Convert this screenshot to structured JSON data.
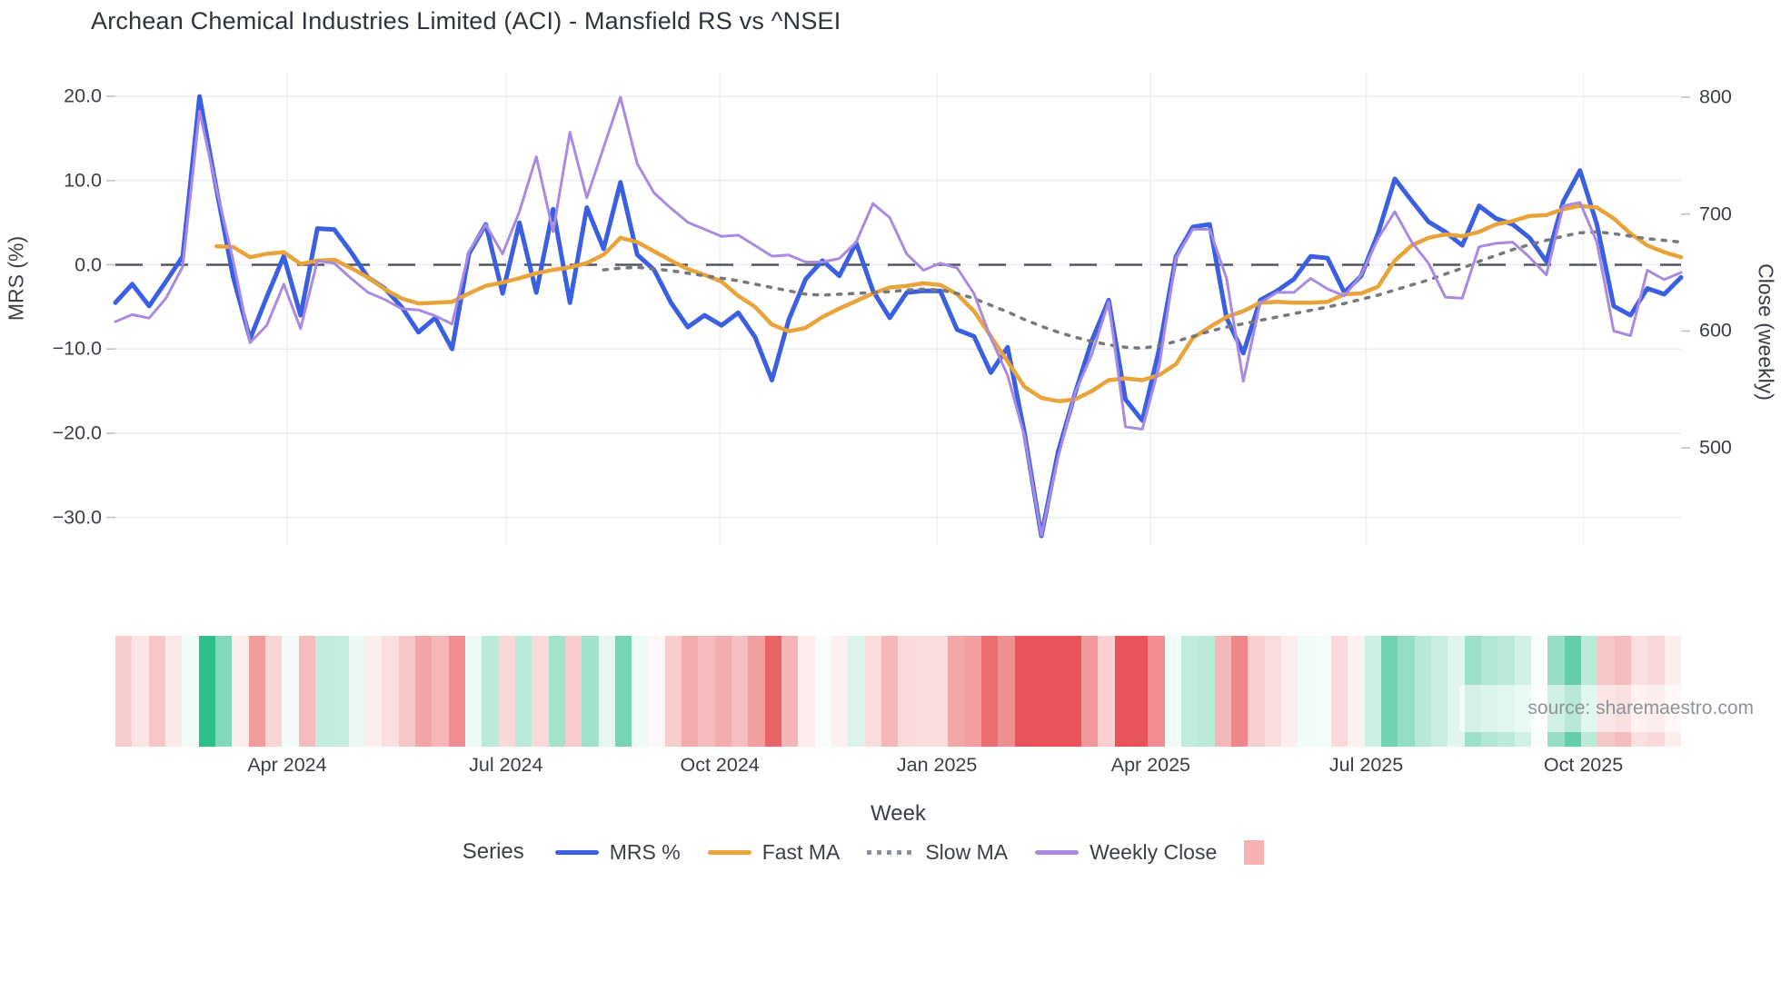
{
  "title": "Archean Chemical Industries Limited (ACI) - Mansfield RS vs ^NSEI",
  "source_note": "source: sharemaestro.com",
  "axes": {
    "y_left_label": "MRS (%)",
    "y_right_label": "Close (weekly)",
    "x_label": "Week",
    "y_left_ticks": [
      "20.0",
      "10.0",
      "0.0",
      "−10.0",
      "−20.0",
      "−30.0"
    ],
    "y_left_tick_values": [
      20,
      10,
      0,
      -10,
      -20,
      -30
    ],
    "y_right_ticks": [
      "800",
      "700",
      "600",
      "500"
    ],
    "y_right_tick_values": [
      800,
      700,
      600,
      500
    ],
    "x_ticks": [
      {
        "label": "Apr 2024",
        "week": 10.2
      },
      {
        "label": "Jul 2024",
        "week": 23.2
      },
      {
        "label": "Oct 2024",
        "week": 35.9
      },
      {
        "label": "Jan 2025",
        "week": 48.8
      },
      {
        "label": "Apr 2025",
        "week": 61.5
      },
      {
        "label": "Jul 2025",
        "week": 74.3
      },
      {
        "label": "Oct 2025",
        "week": 87.2
      }
    ]
  },
  "legend": {
    "title": "Series",
    "items": [
      {
        "label": "MRS %",
        "color": "#3a5fe0",
        "style": "solid"
      },
      {
        "label": "Fast MA",
        "color": "#e8a43a",
        "style": "solid"
      },
      {
        "label": "Slow MA",
        "color": "#8a8f99",
        "style": "dotted"
      },
      {
        "label": "Weekly Close",
        "color": "#a98ae0",
        "style": "solid"
      },
      {
        "label": "",
        "color": "#f7b1b4",
        "style": "square"
      }
    ]
  },
  "chart_data": {
    "type": "line",
    "title": "Archean Chemical Industries Limited (ACI) - Mansfield RS vs ^NSEI",
    "xlabel": "Week",
    "ylabel_left": "MRS (%)",
    "ylabel_right": "Close (weekly)",
    "x_unit": "week_index",
    "n_weeks": 94,
    "ylim_left": [
      -35,
      22
    ],
    "ylim_right": [
      420,
      810
    ],
    "grid": true,
    "legend_position": "bottom",
    "zero_line": {
      "value": 0,
      "axis": "left",
      "style": "dashed",
      "color": "#50555f"
    },
    "series": [
      {
        "name": "MRS %",
        "axis": "left",
        "color": "#3a5fe0",
        "style": "solid",
        "width": 5,
        "values": [
          -4.5,
          -2.3,
          -4.9,
          -2,
          1,
          20,
          9,
          -1.5,
          -8.8,
          -3.8,
          1,
          -6,
          4.3,
          4.2,
          1.5,
          -1.5,
          -2.8,
          -5,
          -8,
          -6.3,
          -10,
          1.3,
          4.8,
          -3.4,
          5,
          -3.3,
          6.6,
          -4.5,
          6.8,
          1.9,
          9.8,
          1.2,
          -0.6,
          -4.5,
          -7.4,
          -6,
          -7.2,
          -5.7,
          -8.6,
          -13.7,
          -6.5,
          -1.7,
          0.5,
          -1.3,
          2.6,
          -3.1,
          -6.3,
          -3.3,
          -3.1,
          -3.1,
          -7.7,
          -8.5,
          -12.8,
          -9.8,
          -20,
          -32.2,
          -22.2,
          -15.3,
          -9,
          -4.2,
          -16,
          -18.5,
          -10,
          1,
          4.5,
          4.8,
          -6.3,
          -10.5,
          -4.2,
          -3.1,
          -1.7,
          1,
          0.8,
          -3.3,
          -1.3,
          3.7,
          10.2,
          7.6,
          5.1,
          3.9,
          2.3,
          7,
          5.5,
          4.8,
          3.2,
          0.4,
          7.5,
          11.2,
          4.8,
          -4.9,
          -6,
          -2.8,
          -3.5,
          -1.5
        ]
      },
      {
        "name": "Fast MA",
        "axis": "left",
        "color": "#e8a43a",
        "style": "solid",
        "width": 4.5,
        "values": [
          null,
          null,
          null,
          null,
          null,
          null,
          2.2,
          2.1,
          0.9,
          1.3,
          1.5,
          0.1,
          0.5,
          0.6,
          -0.4,
          -1.5,
          -2.9,
          -4,
          -4.6,
          -4.5,
          -4.4,
          -3.4,
          -2.5,
          -2.1,
          -1.6,
          -1,
          -0.6,
          -0.3,
          0.2,
          1.2,
          3.2,
          2.7,
          1.6,
          0.5,
          -0.5,
          -1.2,
          -2,
          -3.7,
          -5,
          -7.1,
          -7.9,
          -7.5,
          -6.2,
          -5.2,
          -4.3,
          -3.4,
          -2.7,
          -2.5,
          -2.2,
          -2.4,
          -3.5,
          -5.5,
          -8.5,
          -11.5,
          -14.5,
          -15.8,
          -16.2,
          -16,
          -15,
          -13.7,
          -13.5,
          -13.7,
          -13.1,
          -11.8,
          -8.7,
          -7.4,
          -6.2,
          -5.5,
          -4.5,
          -4.4,
          -4.5,
          -4.5,
          -4.4,
          -3.5,
          -3.4,
          -2.6,
          0.5,
          2.3,
          3.2,
          3.6,
          3.4,
          3.9,
          4.8,
          5.2,
          5.8,
          5.9,
          6.6,
          7,
          6.8,
          5.5,
          3.7,
          2.3,
          1.5,
          0.9
        ]
      },
      {
        "name": "Slow MA",
        "axis": "left",
        "color": "#74797f",
        "style": "dotted",
        "width": 3.5,
        "values": [
          null,
          null,
          null,
          null,
          null,
          null,
          null,
          null,
          null,
          null,
          null,
          null,
          null,
          null,
          null,
          null,
          null,
          null,
          null,
          null,
          null,
          null,
          null,
          null,
          null,
          null,
          null,
          null,
          null,
          -0.6,
          -0.4,
          -0.3,
          -0.5,
          -0.7,
          -1,
          -1.3,
          -1.6,
          -1.9,
          -2.3,
          -2.7,
          -3.1,
          -3.5,
          -3.6,
          -3.5,
          -3.4,
          -3.3,
          -3.2,
          -3,
          -2.9,
          -3,
          -3.4,
          -4,
          -4.8,
          -5.6,
          -6.5,
          -7.3,
          -8,
          -8.6,
          -9.1,
          -9.5,
          -9.8,
          -9.9,
          -9.6,
          -9.1,
          -8.5,
          -7.9,
          -7.4,
          -7,
          -6.6,
          -6.2,
          -5.8,
          -5.4,
          -5,
          -4.6,
          -4.1,
          -3.6,
          -3,
          -2.4,
          -1.8,
          -1.1,
          -0.4,
          0.4,
          1.1,
          1.8,
          2.4,
          2.9,
          3.4,
          3.8,
          3.9,
          3.7,
          3.4,
          3.1,
          2.9,
          2.7
        ]
      },
      {
        "name": "Weekly Close",
        "axis": "right",
        "color": "#a98ae0",
        "style": "solid",
        "width": 3,
        "values": [
          608,
          614,
          611,
          628,
          655,
          788,
          722,
          660,
          590,
          605,
          640,
          602,
          660,
          658,
          645,
          633,
          627,
          619,
          618,
          613,
          606,
          668,
          691,
          666,
          702,
          749,
          685,
          770,
          714,
          757,
          800,
          743,
          718,
          705,
          693,
          687,
          681,
          682,
          673,
          664,
          665,
          659,
          659,
          662,
          676,
          709,
          697,
          666,
          652,
          658,
          654,
          632,
          594,
          562,
          510,
          425,
          492,
          547,
          580,
          625,
          518,
          516,
          570,
          663,
          687,
          687,
          645,
          557,
          624,
          633,
          633,
          645,
          636,
          630,
          648,
          679,
          702,
          676,
          658,
          629,
          628,
          672,
          675,
          676,
          663,
          648,
          707,
          710,
          676,
          600,
          596,
          652,
          644,
          650
        ]
      }
    ],
    "heatmap_strip": {
      "derived_from": "MRS %",
      "colormap": "red-white-green",
      "negative_color": "#e85458",
      "positive_color": "#2ebe89",
      "scale_abs_max": 15
    }
  }
}
